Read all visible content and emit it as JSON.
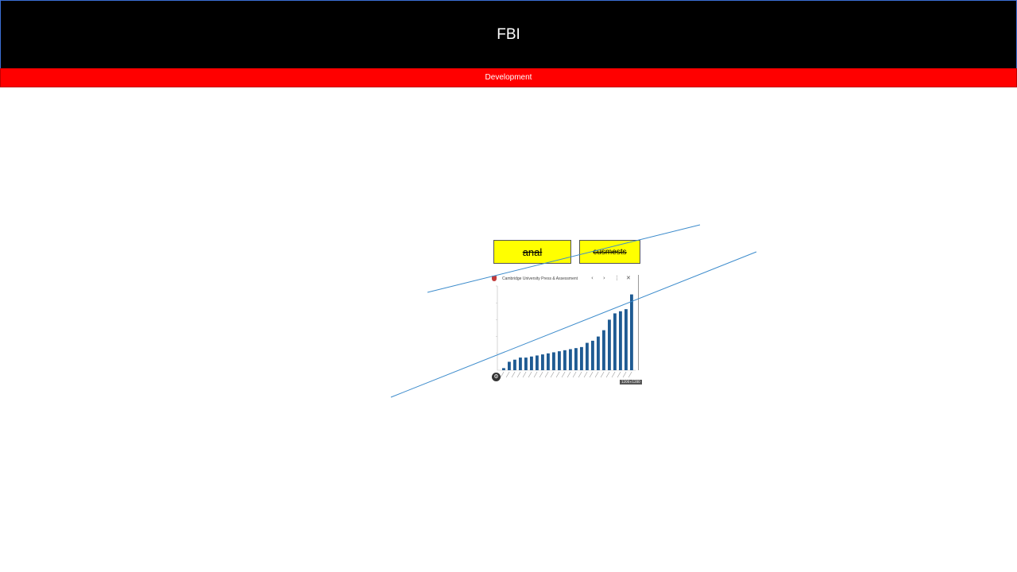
{
  "header": {
    "title": "FBI"
  },
  "subheader": {
    "label": "Development"
  },
  "tags": [
    {
      "label": "anal"
    },
    {
      "label": "cusmests"
    }
  ],
  "thumbnail": {
    "site_title": "Cambridge University Press & Assessment",
    "controls": {
      "prev_icon": "‹",
      "next_icon": "›",
      "more_icon": "⋮",
      "close_icon": "✕"
    },
    "badge_icon": "⚙",
    "size_label": "1200×1200"
  },
  "chart_data": {
    "type": "bar",
    "values": [
      1,
      4,
      5,
      6,
      6,
      6.5,
      7,
      7.5,
      8,
      8.5,
      9,
      9.5,
      10,
      10.5,
      11,
      13,
      14,
      16,
      19,
      24,
      27,
      28,
      29,
      36
    ],
    "ylim": [
      0,
      40
    ],
    "bar_color": "#1f5b93"
  },
  "colors": {
    "header_bg": "#000000",
    "subheader_bg": "#ff0000",
    "tag_bg": "#ffff00",
    "line": "#3d8ccc"
  }
}
